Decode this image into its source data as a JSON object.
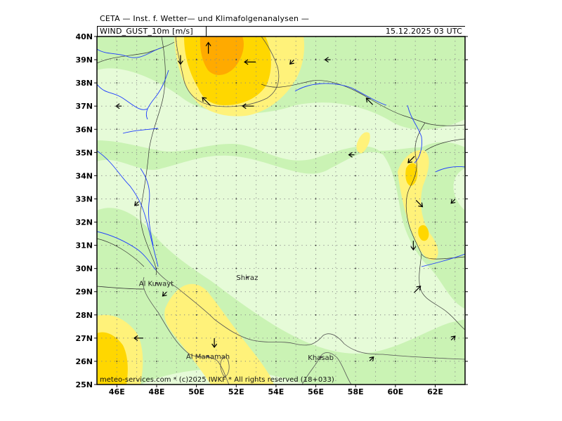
{
  "header": {
    "institute": "CETA — Inst. f. Wetter— und Klimafolgenanalysen —",
    "parameter": "WIND_GUST_10m [m/s]",
    "datetime": "15.12.2025 03 UTC"
  },
  "credit": "meteo-services.com * (c)2025 IWKF * All rights reserved (18+033)",
  "cities": [
    {
      "name": "Shiraz",
      "lon": 52.55,
      "lat": 29.62
    },
    {
      "name": "Al Kuwayt",
      "lon": 47.98,
      "lat": 29.37
    },
    {
      "name": "Al Manamah",
      "lon": 50.58,
      "lat": 26.22
    },
    {
      "name": "Khasab",
      "lon": 56.25,
      "lat": 26.18
    }
  ],
  "axes": {
    "lat_labels": [
      "25N",
      "26N",
      "27N",
      "28N",
      "29N",
      "30N",
      "31N",
      "32N",
      "33N",
      "34N",
      "35N",
      "36N",
      "37N",
      "38N",
      "39N",
      "40N"
    ],
    "lon_labels": [
      "46E",
      "48E",
      "50E",
      "52E",
      "54E",
      "56E",
      "58E",
      "60E",
      "62E"
    ]
  },
  "colors": {
    "light_green": "#e6fbd8",
    "green": "#c6f2b0",
    "light_yellow": "#fff27a",
    "yellow": "#ffd700",
    "orange": "#ffaa00",
    "river": "#1e3cff",
    "border": "#333333",
    "coast": "#555555"
  },
  "wind_arrows": [
    {
      "lon": 50.6,
      "lat": 39.5,
      "dir": "N",
      "size": "L"
    },
    {
      "lon": 49.2,
      "lat": 39.0,
      "dir": "S",
      "size": "M"
    },
    {
      "lon": 52.7,
      "lat": 38.9,
      "dir": "W",
      "size": "L"
    },
    {
      "lon": 54.8,
      "lat": 38.9,
      "dir": "SW",
      "size": "S"
    },
    {
      "lon": 50.5,
      "lat": 37.2,
      "dir": "NW",
      "size": "L"
    },
    {
      "lon": 52.6,
      "lat": 37.0,
      "dir": "W",
      "size": "L"
    },
    {
      "lon": 56.6,
      "lat": 39.0,
      "dir": "W",
      "size": "S"
    },
    {
      "lon": 58.7,
      "lat": 37.2,
      "dir": "NW",
      "size": "M"
    },
    {
      "lon": 60.8,
      "lat": 34.7,
      "dir": "SW",
      "size": "M"
    },
    {
      "lon": 61.2,
      "lat": 32.8,
      "dir": "SE",
      "size": "M"
    },
    {
      "lon": 60.9,
      "lat": 31.0,
      "dir": "S",
      "size": "M"
    },
    {
      "lon": 61.1,
      "lat": 29.1,
      "dir": "NE",
      "size": "M"
    },
    {
      "lon": 47.1,
      "lat": 27.0,
      "dir": "W",
      "size": "M"
    },
    {
      "lon": 50.9,
      "lat": 26.8,
      "dir": "S",
      "size": "M"
    },
    {
      "lon": 48.4,
      "lat": 28.9,
      "dir": "SW",
      "size": "S"
    },
    {
      "lon": 47.0,
      "lat": 32.8,
      "dir": "SW",
      "size": "S"
    },
    {
      "lon": 46.1,
      "lat": 37.0,
      "dir": "W",
      "size": "S"
    },
    {
      "lon": 57.8,
      "lat": 34.9,
      "dir": "W",
      "size": "S"
    },
    {
      "lon": 58.8,
      "lat": 26.1,
      "dir": "NE",
      "size": "S"
    },
    {
      "lon": 62.9,
      "lat": 27.0,
      "dir": "NE",
      "size": "S"
    },
    {
      "lon": 62.9,
      "lat": 32.9,
      "dir": "SW",
      "size": "S"
    }
  ]
}
